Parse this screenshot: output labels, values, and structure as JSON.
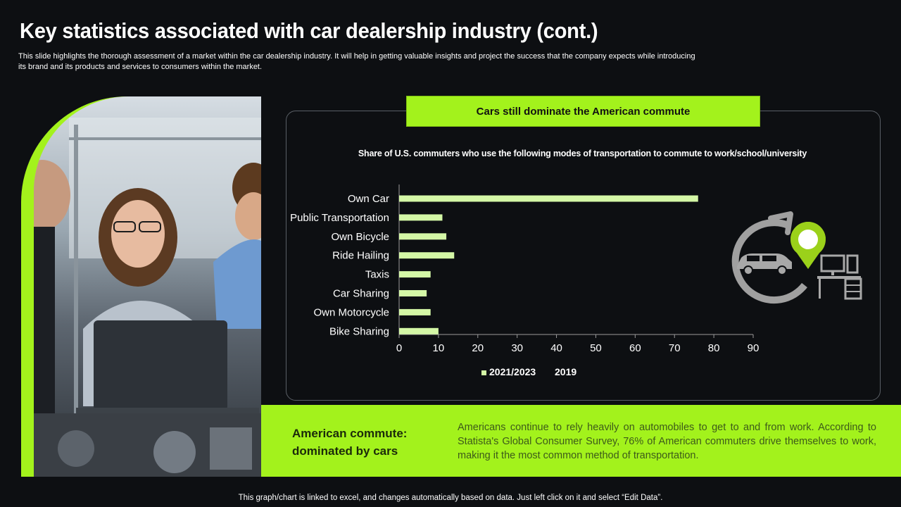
{
  "slide": {
    "title": "Key statistics associated with car dealership industry (cont.)",
    "subtitle": "This slide highlights the thorough assessment of a market within the car dealership industry. It will help in getting valuable insights and project the success that the company expects while introducing its brand and its products and services to consumers within the market.",
    "footer": "This graph/chart is linked to excel,  and changes automatically based on data. Just left click on it and select “Edit Data”."
  },
  "panel": {
    "header": "Cars still dominate the American commute"
  },
  "summary": {
    "heading": "American commute: dominated by cars",
    "text": "Americans continue to rely heavily on automobiles to get to and from work. According to Statista's Global Consumer Survey, 76% of American commuters drive themselves to work, making it the most common method of transportation."
  },
  "icons": [
    "photo-people-laptop",
    "car-icon",
    "cycle-arrow-icon",
    "location-pin-icon",
    "desk-computer-icon"
  ],
  "colors": {
    "accent": "#a3f21c",
    "bar": "#d4f7a6",
    "background": "#0d0f12"
  },
  "chart_data": {
    "type": "bar",
    "orientation": "horizontal",
    "title": "Share of U.S. commuters who use the following modes of transportation to commute to work/school/university",
    "categories": [
      "Own Car",
      "Public Transportation",
      "Own Bicycle",
      "Ride Hailing",
      "Taxis",
      "Car Sharing",
      "Own Motorcycle",
      "Bike Sharing"
    ],
    "series": [
      {
        "name": "2021/2023",
        "values": [
          76,
          11,
          12,
          14,
          8,
          7,
          8,
          10
        ]
      },
      {
        "name": "2019",
        "values": [
          null,
          null,
          null,
          null,
          null,
          null,
          null,
          null
        ]
      }
    ],
    "xlim": [
      0,
      90
    ],
    "xticks": [
      0,
      10,
      20,
      30,
      40,
      50,
      60,
      70,
      80,
      90
    ],
    "xlabel": "",
    "ylabel": "",
    "legend": "bottom-left"
  }
}
